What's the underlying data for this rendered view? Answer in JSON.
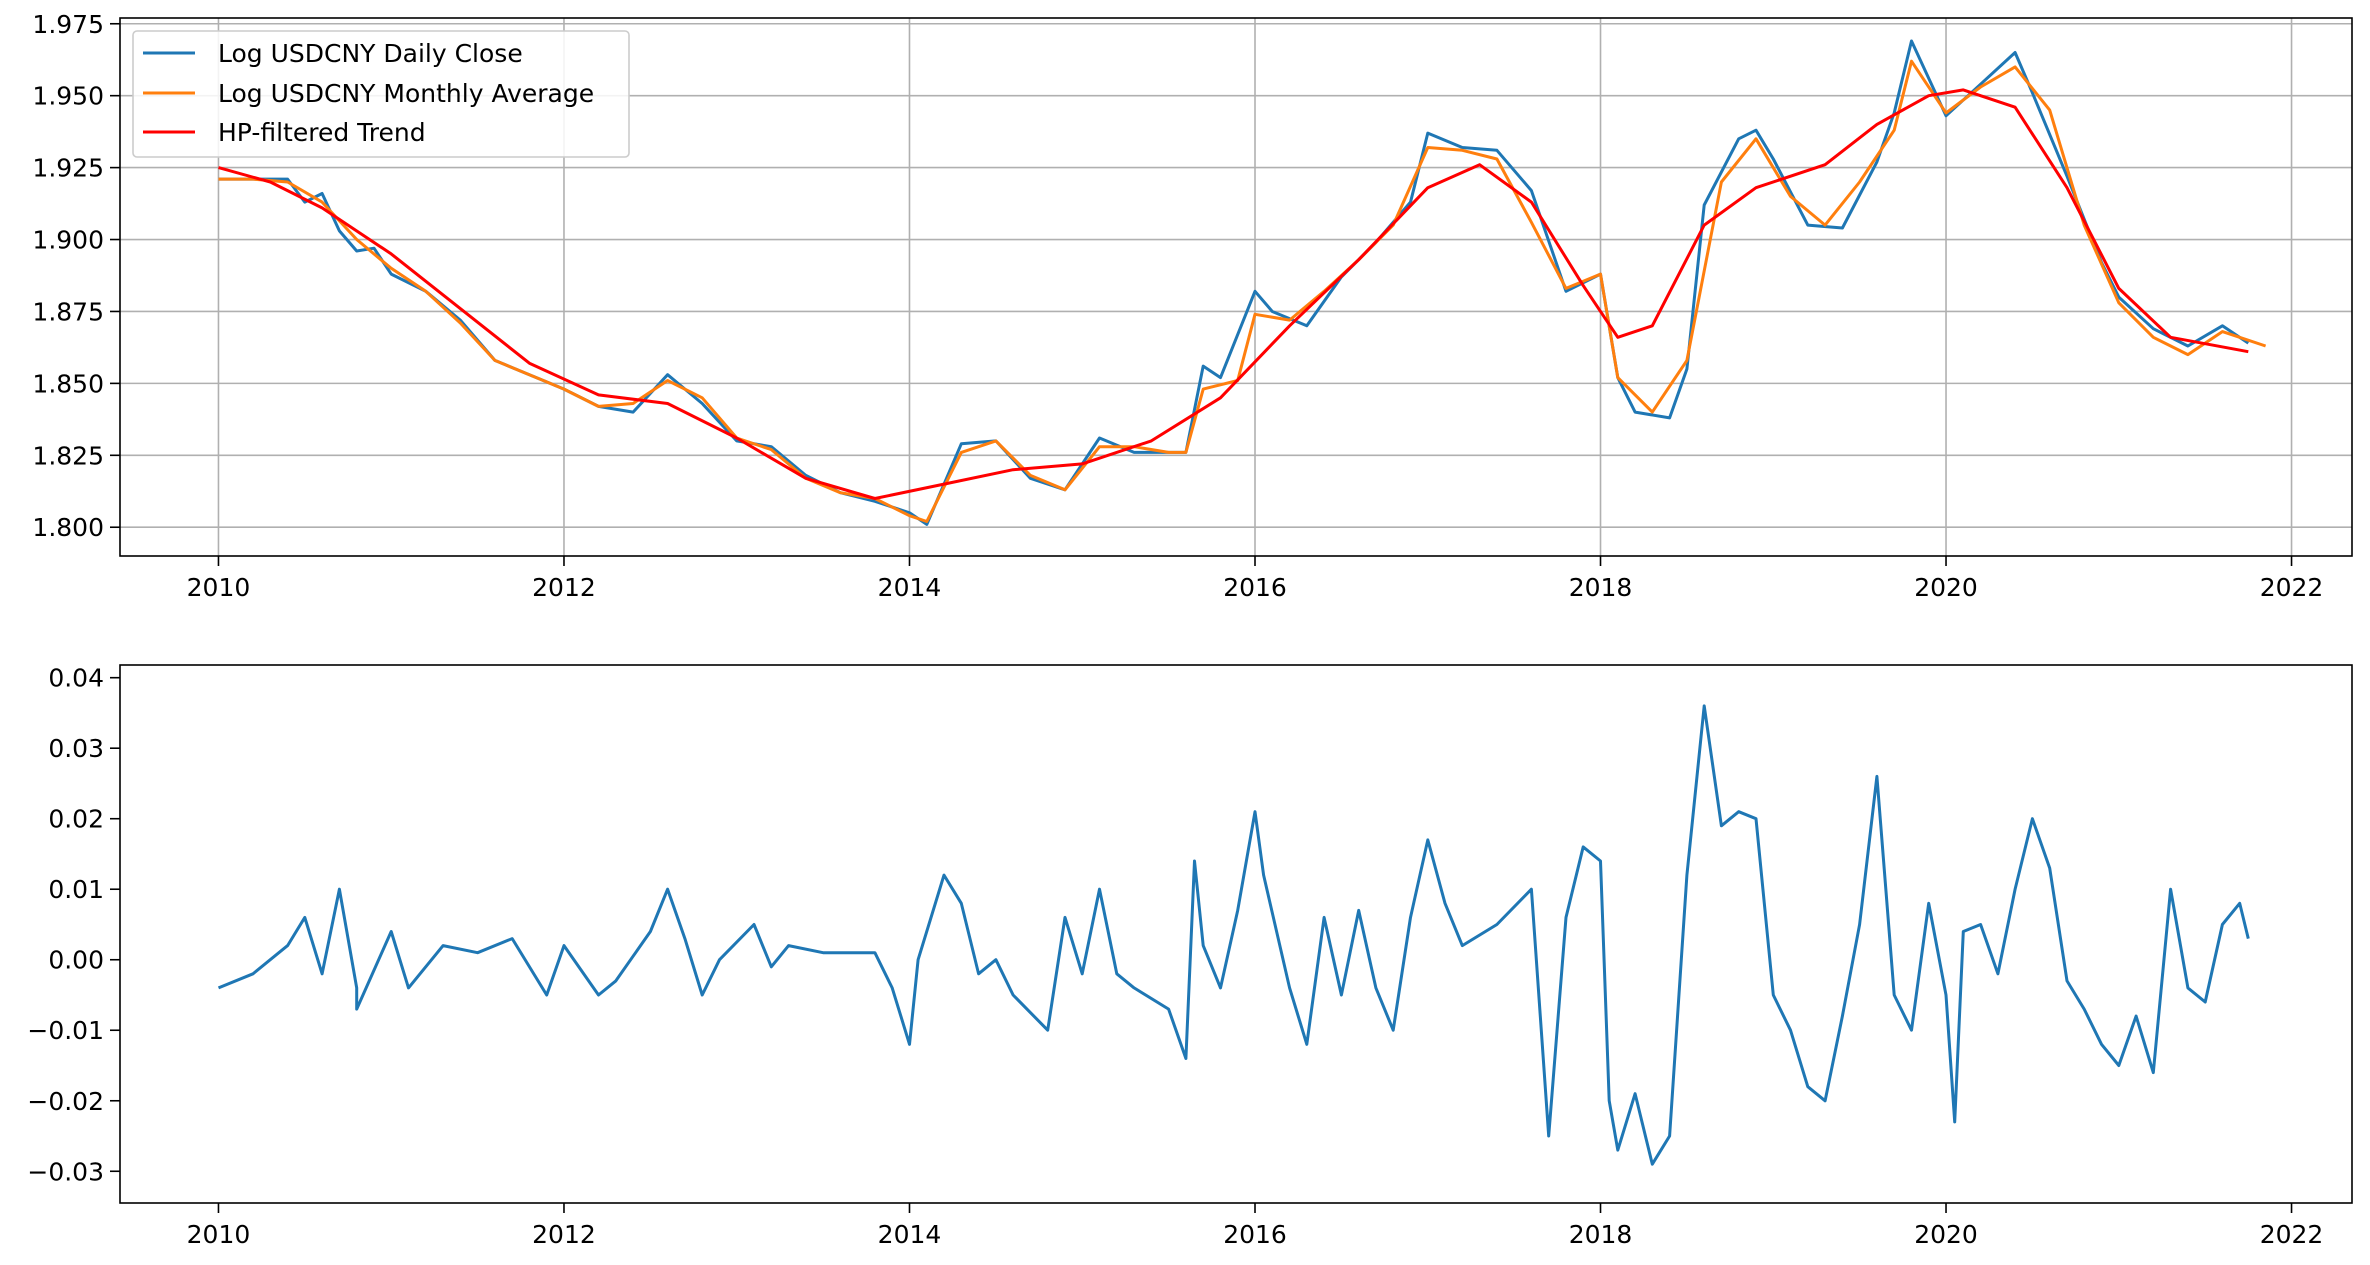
{
  "chart_data": [
    {
      "type": "line",
      "title": "",
      "xlabel": "",
      "ylabel": "",
      "xlim": [
        2009.43,
        2022.35
      ],
      "ylim": [
        1.79,
        1.977
      ],
      "grid": true,
      "legend_position": "top-left",
      "x_ticks": [
        "2010",
        "2012",
        "2014",
        "2016",
        "2018",
        "2020",
        "2022"
      ],
      "y_ticks": [
        "1.800",
        "1.825",
        "1.850",
        "1.875",
        "1.900",
        "1.925",
        "1.950",
        "1.975"
      ],
      "series": [
        {
          "name": "Log USDCNY Daily Close",
          "color": "#1f77b4",
          "x": [
            2010.0,
            2010.1,
            2010.2,
            2010.3,
            2010.4,
            2010.5,
            2010.6,
            2010.7,
            2010.8,
            2010.9,
            2011.0,
            2011.2,
            2011.4,
            2011.6,
            2011.8,
            2012.0,
            2012.2,
            2012.4,
            2012.6,
            2012.8,
            2013.0,
            2013.2,
            2013.4,
            2013.6,
            2013.8,
            2014.0,
            2014.1,
            2014.3,
            2014.5,
            2014.7,
            2014.9,
            2015.1,
            2015.3,
            2015.5,
            2015.6,
            2015.7,
            2015.8,
            2016.0,
            2016.1,
            2016.3,
            2016.5,
            2016.7,
            2016.9,
            2017.0,
            2017.2,
            2017.4,
            2017.6,
            2017.8,
            2018.0,
            2018.1,
            2018.2,
            2018.4,
            2018.5,
            2018.6,
            2018.8,
            2018.9,
            2019.0,
            2019.2,
            2019.4,
            2019.6,
            2019.7,
            2019.8,
            2020.0,
            2020.2,
            2020.4,
            2020.5,
            2020.7,
            2020.9,
            2021.0,
            2021.2,
            2021.4,
            2021.6,
            2021.75
          ],
          "values": [
            1.921,
            1.921,
            1.921,
            1.921,
            1.921,
            1.913,
            1.916,
            1.903,
            1.896,
            1.897,
            1.888,
            1.882,
            1.872,
            1.858,
            1.853,
            1.848,
            1.842,
            1.84,
            1.853,
            1.843,
            1.83,
            1.828,
            1.818,
            1.812,
            1.809,
            1.805,
            1.801,
            1.829,
            1.83,
            1.817,
            1.813,
            1.831,
            1.826,
            1.826,
            1.826,
            1.856,
            1.852,
            1.882,
            1.875,
            1.87,
            1.887,
            1.899,
            1.913,
            1.937,
            1.932,
            1.931,
            1.917,
            1.882,
            1.888,
            1.852,
            1.84,
            1.838,
            1.855,
            1.912,
            1.935,
            1.938,
            1.928,
            1.905,
            1.904,
            1.927,
            1.944,
            1.969,
            1.943,
            1.954,
            1.965,
            1.951,
            1.922,
            1.892,
            1.88,
            1.869,
            1.863,
            1.87,
            1.864
          ]
        },
        {
          "name": "Log USDCNY Monthly Average",
          "color": "#ff7f0e",
          "x": [
            2010.0,
            2010.2,
            2010.4,
            2010.6,
            2010.8,
            2011.0,
            2011.2,
            2011.4,
            2011.6,
            2011.8,
            2012.0,
            2012.2,
            2012.4,
            2012.6,
            2012.8,
            2013.0,
            2013.2,
            2013.4,
            2013.6,
            2013.8,
            2014.0,
            2014.1,
            2014.3,
            2014.5,
            2014.7,
            2014.9,
            2015.1,
            2015.3,
            2015.5,
            2015.6,
            2015.7,
            2015.9,
            2016.0,
            2016.2,
            2016.4,
            2016.6,
            2016.8,
            2017.0,
            2017.2,
            2017.4,
            2017.6,
            2017.8,
            2018.0,
            2018.1,
            2018.3,
            2018.5,
            2018.7,
            2018.9,
            2019.1,
            2019.3,
            2019.5,
            2019.7,
            2019.8,
            2020.0,
            2020.2,
            2020.4,
            2020.6,
            2020.8,
            2021.0,
            2021.2,
            2021.4,
            2021.6,
            2021.85
          ],
          "values": [
            1.921,
            1.921,
            1.92,
            1.913,
            1.9,
            1.89,
            1.882,
            1.871,
            1.858,
            1.853,
            1.848,
            1.842,
            1.843,
            1.851,
            1.845,
            1.831,
            1.827,
            1.817,
            1.812,
            1.81,
            1.804,
            1.802,
            1.826,
            1.83,
            1.818,
            1.813,
            1.828,
            1.828,
            1.826,
            1.826,
            1.848,
            1.851,
            1.874,
            1.872,
            1.882,
            1.893,
            1.905,
            1.932,
            1.931,
            1.928,
            1.906,
            1.883,
            1.888,
            1.852,
            1.84,
            1.858,
            1.92,
            1.935,
            1.915,
            1.905,
            1.92,
            1.938,
            1.962,
            1.944,
            1.953,
            1.96,
            1.945,
            1.905,
            1.878,
            1.866,
            1.86,
            1.868,
            1.863
          ]
        },
        {
          "name": "HP-filtered Trend",
          "color": "#ff0000",
          "x": [
            2010.0,
            2010.3,
            2010.6,
            2011.0,
            2011.4,
            2011.8,
            2012.2,
            2012.6,
            2013.0,
            2013.4,
            2013.8,
            2014.2,
            2014.6,
            2015.0,
            2015.4,
            2015.8,
            2016.2,
            2016.6,
            2017.0,
            2017.3,
            2017.6,
            2017.9,
            2018.1,
            2018.3,
            2018.6,
            2018.9,
            2019.3,
            2019.6,
            2019.9,
            2020.1,
            2020.4,
            2020.7,
            2021.0,
            2021.3,
            2021.75
          ],
          "values": [
            1.925,
            1.92,
            1.911,
            1.895,
            1.876,
            1.857,
            1.846,
            1.843,
            1.831,
            1.817,
            1.81,
            1.815,
            1.82,
            1.822,
            1.83,
            1.845,
            1.87,
            1.893,
            1.918,
            1.926,
            1.913,
            1.884,
            1.866,
            1.87,
            1.905,
            1.918,
            1.926,
            1.94,
            1.95,
            1.952,
            1.946,
            1.918,
            1.883,
            1.866,
            1.861
          ]
        }
      ]
    },
    {
      "type": "line",
      "title": "",
      "xlabel": "",
      "ylabel": "",
      "xlim": [
        2009.43,
        2022.35
      ],
      "ylim": [
        -0.0345,
        0.0418
      ],
      "grid": false,
      "x_ticks": [
        "2010",
        "2012",
        "2014",
        "2016",
        "2018",
        "2020",
        "2022"
      ],
      "y_ticks": [
        "−0.03",
        "−0.02",
        "−0.01",
        "0.00",
        "0.01",
        "0.02",
        "0.03",
        "0.04"
      ],
      "series": [
        {
          "color": "#1f77b4",
          "x": [
            2010.0,
            2010.2,
            2010.4,
            2010.5,
            2010.6,
            2010.7,
            2010.8,
            2010.8,
            2011.0,
            2011.1,
            2011.3,
            2011.5,
            2011.7,
            2011.9,
            2012.0,
            2012.2,
            2012.3,
            2012.5,
            2012.6,
            2012.7,
            2012.8,
            2012.9,
            2013.1,
            2013.2,
            2013.3,
            2013.5,
            2013.7,
            2013.8,
            2013.9,
            2014.0,
            2014.05,
            2014.2,
            2014.3,
            2014.4,
            2014.5,
            2014.6,
            2014.8,
            2014.9,
            2015.0,
            2015.1,
            2015.2,
            2015.3,
            2015.5,
            2015.6,
            2015.65,
            2015.7,
            2015.8,
            2015.9,
            2016.0,
            2016.05,
            2016.2,
            2016.3,
            2016.4,
            2016.5,
            2016.6,
            2016.7,
            2016.8,
            2016.9,
            2017.0,
            2017.1,
            2017.2,
            2017.4,
            2017.6,
            2017.7,
            2017.8,
            2017.9,
            2018.0,
            2018.05,
            2018.1,
            2018.2,
            2018.3,
            2018.4,
            2018.5,
            2018.6,
            2018.7,
            2018.8,
            2018.9,
            2019.0,
            2019.1,
            2019.2,
            2019.3,
            2019.4,
            2019.5,
            2019.6,
            2019.7,
            2019.8,
            2019.9,
            2020.0,
            2020.05,
            2020.1,
            2020.2,
            2020.3,
            2020.4,
            2020.5,
            2020.6,
            2020.7,
            2020.8,
            2020.9,
            2021.0,
            2021.1,
            2021.2,
            2021.3,
            2021.4,
            2021.5,
            2021.6,
            2021.7,
            2021.75
          ],
          "values": [
            -0.004,
            -0.002,
            0.002,
            0.006,
            -0.002,
            0.01,
            -0.004,
            -0.007,
            0.004,
            -0.004,
            0.002,
            0.001,
            0.003,
            -0.005,
            0.002,
            -0.005,
            -0.003,
            0.004,
            0.01,
            0.003,
            -0.005,
            0.0,
            0.005,
            -0.001,
            0.002,
            0.001,
            0.001,
            0.001,
            -0.004,
            -0.012,
            0.0,
            0.012,
            0.008,
            -0.002,
            0.0,
            -0.005,
            -0.01,
            0.006,
            -0.002,
            0.01,
            -0.002,
            -0.004,
            -0.007,
            -0.014,
            0.014,
            0.002,
            -0.004,
            0.007,
            0.021,
            0.012,
            -0.004,
            -0.012,
            0.006,
            -0.005,
            0.007,
            -0.004,
            -0.01,
            0.006,
            0.017,
            0.008,
            0.002,
            0.005,
            0.01,
            -0.025,
            0.006,
            0.016,
            0.014,
            -0.02,
            -0.027,
            -0.019,
            -0.029,
            -0.025,
            0.012,
            0.036,
            0.019,
            0.021,
            0.02,
            -0.005,
            -0.01,
            -0.018,
            -0.02,
            -0.008,
            0.005,
            0.026,
            -0.005,
            -0.01,
            0.008,
            -0.005,
            -0.023,
            0.004,
            0.005,
            -0.002,
            0.01,
            0.02,
            0.013,
            -0.003,
            -0.007,
            -0.012,
            -0.015,
            -0.008,
            -0.016,
            0.01,
            -0.004,
            -0.006,
            0.005,
            0.008,
            0.003
          ]
        }
      ]
    }
  ]
}
